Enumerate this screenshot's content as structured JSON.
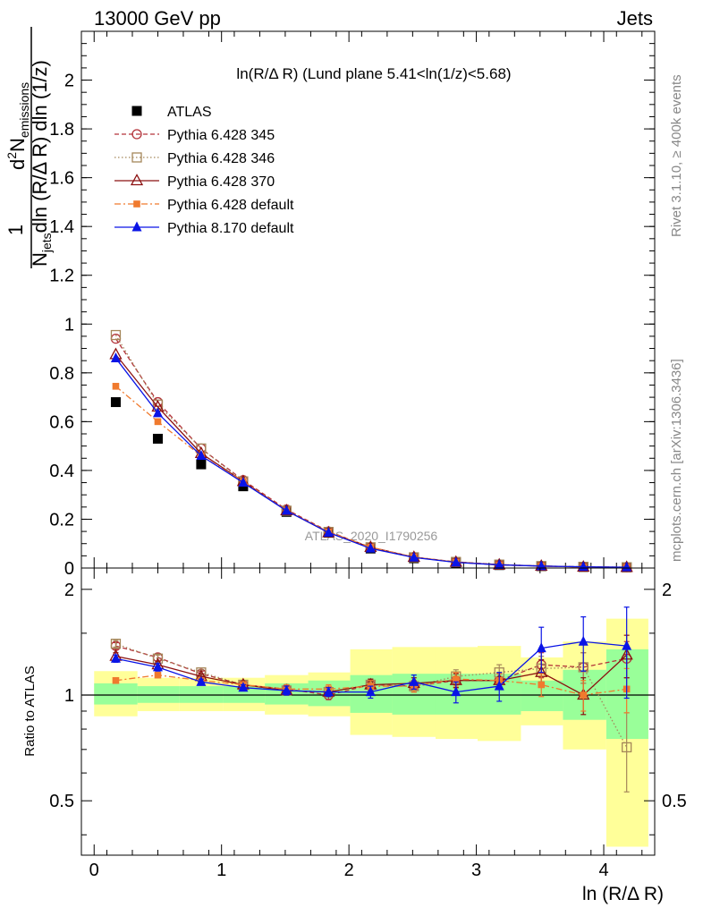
{
  "header": {
    "left": "13000 GeV pp",
    "right": "Jets"
  },
  "side_labels": {
    "rivet": "Rivet 3.1.10, ≥ 400k events",
    "mcplots": "mcplots.cern.ch [arXiv:1306.3436]"
  },
  "chart_data": [
    {
      "type": "scatter",
      "panel": "main",
      "title": "ln(R/Δ R) (Lund plane 5.41<ln(1/z)<5.68)",
      "watermark": "ATLAS_2020_I1790256",
      "ylabel": "1/N_jets d²N_emissions / dln(R/Δ R) dln(1/z)",
      "ylabel_parts": {
        "one": "1",
        "njets": "N",
        "njets_sub": "jets",
        "d2": "d",
        "d2_sup": "2",
        "nem": "N",
        "nem_sub": "emissions",
        "den": "dln (R/Δ R) dln (1/z)"
      },
      "xlim": [
        -0.1,
        4.4
      ],
      "ylim": [
        0,
        2.2
      ],
      "yticks": [
        0,
        0.2,
        0.4,
        0.6,
        0.8,
        1,
        1.2,
        1.4,
        1.6,
        1.8,
        2
      ],
      "ytick_labels": [
        "0",
        "0.2",
        "0.4",
        "0.6",
        "0.8",
        "1",
        "1.2",
        "1.4",
        "1.6",
        "1.8",
        "2"
      ],
      "x": [
        0.17,
        0.5,
        0.84,
        1.17,
        1.51,
        1.84,
        2.17,
        2.51,
        2.84,
        3.18,
        3.51,
        3.84,
        4.18
      ],
      "legend_position": "top-left",
      "series": [
        {
          "name": "ATLAS",
          "color": "#000000",
          "marker": "square-filled",
          "line": "none",
          "values": [
            0.68,
            0.53,
            0.425,
            0.335,
            0.23,
            0.145,
            0.08,
            0.04,
            0.022,
            0.012,
            0.007,
            0.004,
            0.003
          ]
        },
        {
          "name": "Pythia 6.428 345",
          "color": "#b3333a",
          "marker": "circle-open",
          "line": "dashed",
          "values": [
            0.94,
            0.68,
            0.49,
            0.36,
            0.24,
            0.15,
            0.085,
            0.045,
            0.025,
            0.014,
            0.008,
            0.005,
            0.003
          ]
        },
        {
          "name": "Pythia 6.428 346",
          "color": "#a5875a",
          "marker": "square-open",
          "line": "dotted",
          "values": [
            0.955,
            0.67,
            0.49,
            0.355,
            0.235,
            0.148,
            0.085,
            0.044,
            0.025,
            0.014,
            0.008,
            0.005,
            0.003
          ]
        },
        {
          "name": "Pythia 6.428 370",
          "color": "#8b1010",
          "marker": "triangle-open",
          "line": "solid",
          "values": [
            0.875,
            0.66,
            0.47,
            0.355,
            0.235,
            0.145,
            0.085,
            0.044,
            0.024,
            0.013,
            0.008,
            0.004,
            0.003
          ]
        },
        {
          "name": "Pythia 6.428 default",
          "color": "#f07a2e",
          "marker": "square-filled-small",
          "line": "dashdot",
          "values": [
            0.745,
            0.6,
            0.46,
            0.355,
            0.235,
            0.148,
            0.085,
            0.045,
            0.024,
            0.013,
            0.008,
            0.004,
            0.003
          ]
        },
        {
          "name": "Pythia 8.170 default",
          "color": "#0a14e6",
          "marker": "triangle-filled",
          "line": "solid",
          "values": [
            0.86,
            0.635,
            0.46,
            0.35,
            0.235,
            0.145,
            0.08,
            0.043,
            0.023,
            0.013,
            0.008,
            0.005,
            0.003
          ]
        }
      ]
    },
    {
      "type": "scatter",
      "panel": "ratio",
      "ylabel": "Ratio to ATLAS",
      "xlabel": "ln (R/Δ R)",
      "xlim": [
        -0.1,
        4.4
      ],
      "ylim": [
        0.35,
        2.3
      ],
      "log_y": true,
      "xticks": [
        0,
        1,
        2,
        3,
        4
      ],
      "xtick_labels": [
        "0",
        "1",
        "2",
        "3",
        "4"
      ],
      "yticks": [
        0.5,
        1,
        2
      ],
      "ytick_labels": [
        "0.5",
        "1",
        "2"
      ],
      "x": [
        0.17,
        0.5,
        0.84,
        1.17,
        1.51,
        1.84,
        2.17,
        2.51,
        2.84,
        3.18,
        3.51,
        3.84,
        4.18
      ],
      "bin_edges": [
        0,
        0.34,
        0.67,
        1.01,
        1.34,
        1.68,
        2.01,
        2.34,
        2.68,
        3.01,
        3.35,
        3.68,
        4.02,
        4.35
      ],
      "bands": {
        "yellow_range": [
          [
            0.87,
            1.17
          ],
          [
            0.9,
            1.12
          ],
          [
            0.9,
            1.12
          ],
          [
            0.9,
            1.12
          ],
          [
            0.88,
            1.14
          ],
          [
            0.87,
            1.16
          ],
          [
            0.77,
            1.35
          ],
          [
            0.76,
            1.37
          ],
          [
            0.75,
            1.37
          ],
          [
            0.74,
            1.38
          ],
          [
            0.82,
            1.28
          ],
          [
            0.7,
            1.42
          ],
          [
            0.37,
            1.65
          ]
        ],
        "green_range": [
          [
            0.94,
            1.08
          ],
          [
            0.95,
            1.06
          ],
          [
            0.95,
            1.06
          ],
          [
            0.95,
            1.06
          ],
          [
            0.94,
            1.08
          ],
          [
            0.93,
            1.1
          ],
          [
            0.89,
            1.14
          ],
          [
            0.88,
            1.15
          ],
          [
            0.88,
            1.15
          ],
          [
            0.88,
            1.15
          ],
          [
            0.9,
            1.1
          ],
          [
            0.85,
            1.18
          ],
          [
            0.75,
            1.35
          ]
        ],
        "yellow_color": "#ffff99",
        "green_color": "#99ff99"
      },
      "series": [
        {
          "name": "Pythia 6.428 345",
          "color": "#b3333a",
          "marker": "circle-open",
          "line": "dashed",
          "values": [
            1.38,
            1.28,
            1.15,
            1.07,
            1.04,
            1.0,
            1.07,
            1.06,
            1.1,
            1.1,
            1.22,
            1.2,
            1.27
          ],
          "err": [
            0.03,
            0.03,
            0.02,
            0.02,
            0.03,
            0.03,
            0.04,
            0.04,
            0.05,
            0.05,
            0.1,
            0.12,
            0.15
          ]
        },
        {
          "name": "Pythia 6.428 346",
          "color": "#a5875a",
          "marker": "square-open",
          "line": "dotted",
          "values": [
            1.4,
            1.27,
            1.16,
            1.07,
            1.03,
            1.02,
            1.07,
            1.06,
            1.13,
            1.16,
            1.19,
            1.2,
            0.71
          ],
          "err": [
            0.03,
            0.03,
            0.02,
            0.02,
            0.03,
            0.03,
            0.04,
            0.04,
            0.05,
            0.06,
            0.1,
            0.12,
            0.18
          ]
        },
        {
          "name": "Pythia 6.428 370",
          "color": "#8b1010",
          "marker": "triangle-open",
          "line": "solid",
          "values": [
            1.29,
            1.22,
            1.13,
            1.07,
            1.03,
            1.02,
            1.07,
            1.08,
            1.1,
            1.1,
            1.16,
            1.0,
            1.3
          ],
          "err": [
            0.03,
            0.03,
            0.02,
            0.02,
            0.03,
            0.03,
            0.04,
            0.04,
            0.05,
            0.05,
            0.1,
            0.12,
            0.18
          ]
        },
        {
          "name": "Pythia 6.428 default",
          "color": "#f07a2e",
          "marker": "square-filled-small",
          "line": "dashdot",
          "values": [
            1.1,
            1.14,
            1.1,
            1.07,
            1.04,
            1.04,
            1.06,
            1.06,
            1.11,
            1.1,
            1.07,
            1.0,
            1.04
          ],
          "err": [
            0.02,
            0.02,
            0.02,
            0.02,
            0.03,
            0.03,
            0.04,
            0.04,
            0.05,
            0.05,
            0.08,
            0.1,
            0.15
          ]
        },
        {
          "name": "Pythia 8.170 default",
          "color": "#0a14e6",
          "marker": "triangle-filled",
          "line": "solid",
          "values": [
            1.27,
            1.2,
            1.09,
            1.05,
            1.03,
            1.02,
            1.02,
            1.09,
            1.02,
            1.06,
            1.36,
            1.42,
            1.38
          ],
          "err": [
            0.03,
            0.03,
            0.02,
            0.02,
            0.03,
            0.03,
            0.04,
            0.05,
            0.07,
            0.1,
            0.2,
            0.25,
            0.4
          ]
        }
      ]
    }
  ]
}
